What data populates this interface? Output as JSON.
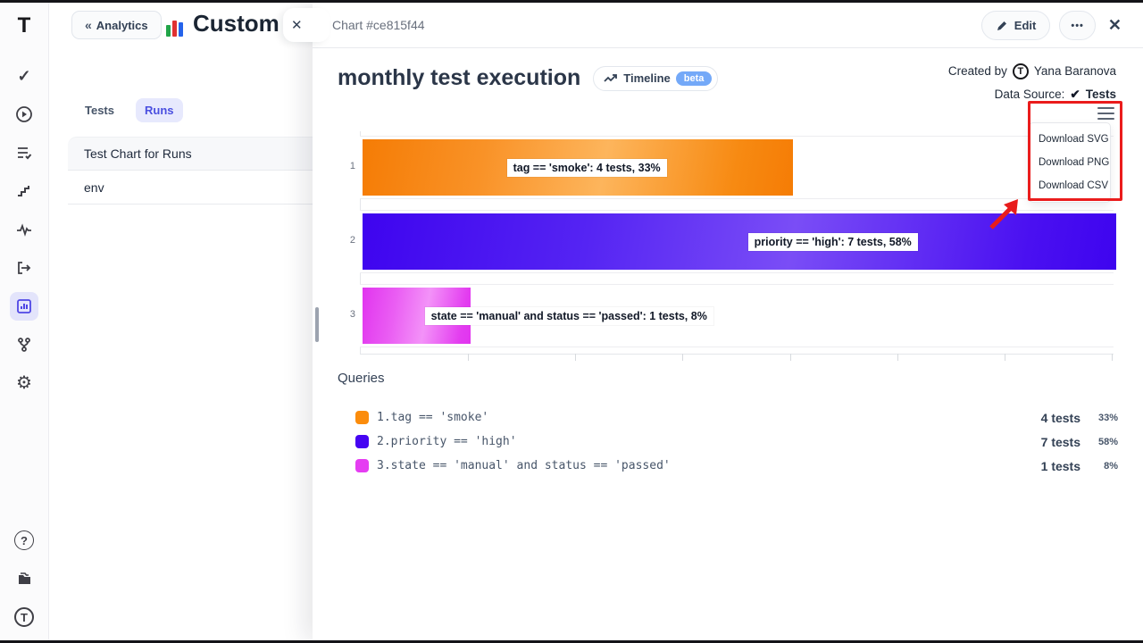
{
  "brand": {
    "letter": "T"
  },
  "sidebar": {
    "icons": [
      "check",
      "play-circle",
      "checklist",
      "stairs",
      "pulse",
      "import",
      "bar-chart",
      "branch",
      "gear"
    ],
    "active_icon": "bar-chart",
    "bottom_icons": [
      "help",
      "docs",
      "logo"
    ]
  },
  "left_panel": {
    "back_label": "Analytics",
    "title": "Custom C",
    "tabs": [
      {
        "label": "Tests",
        "active": false
      },
      {
        "label": "Runs",
        "active": true
      }
    ],
    "items": [
      "Test Chart for Runs",
      "env"
    ]
  },
  "panel": {
    "header_title": "Chart #ce815f44",
    "edit_label": "Edit",
    "more_label": "•••",
    "close_label": "✕",
    "title": "monthly test execution",
    "timeline_label": "Timeline",
    "beta_label": "beta",
    "created_by_label": "Created by",
    "created_by_name": "Yana Baranova",
    "data_source_label": "Data Source:",
    "data_source_check": "✔",
    "data_source_value": "Tests"
  },
  "download_menu": {
    "items": [
      "Download SVG",
      "Download PNG",
      "Download CSV"
    ]
  },
  "chart_data": {
    "type": "bar",
    "orientation": "horizontal",
    "title": "monthly test execution",
    "categories": [
      "1",
      "2",
      "3"
    ],
    "xmax": 7,
    "grid": true,
    "series": [
      {
        "query": "tag == 'smoke'",
        "tests": 4,
        "percent": 33,
        "label": "tag == 'smoke': 4 tests, 33%",
        "color": "#fb8c0c"
      },
      {
        "query": "priority == 'high'",
        "tests": 7,
        "percent": 58,
        "label": "priority == 'high': 7 tests, 58%",
        "color": "#4605f2"
      },
      {
        "query": "state == 'manual' and status == 'passed'",
        "tests": 1,
        "percent": 8,
        "label": "state == 'manual' and status == 'passed': 1 tests, 8%",
        "color": "#e53df2"
      }
    ]
  },
  "queries": {
    "heading": "Queries",
    "items": [
      {
        "index": "1.",
        "query": "tag == 'smoke'",
        "tests": "4 tests",
        "percent": "33%",
        "color": "#fb8c0c"
      },
      {
        "index": "2.",
        "query": "priority == 'high'",
        "tests": "7 tests",
        "percent": "58%",
        "color": "#4605f2"
      },
      {
        "index": "3.",
        "query": "state == 'manual' and status == 'passed'",
        "tests": "1 tests",
        "percent": "8%",
        "color": "#e53df2"
      }
    ]
  }
}
